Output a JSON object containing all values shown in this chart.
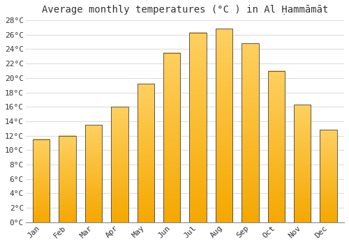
{
  "title": "Average monthly temperatures (°C ) in Al Ḥammāmāt",
  "months": [
    "Jan",
    "Feb",
    "Mar",
    "Apr",
    "May",
    "Jun",
    "Jul",
    "Aug",
    "Sep",
    "Oct",
    "Nov",
    "Dec"
  ],
  "values": [
    11.5,
    12.0,
    13.5,
    16.0,
    19.2,
    23.5,
    26.3,
    26.8,
    24.8,
    21.0,
    16.3,
    12.8
  ],
  "bar_color_top": "#FFD060",
  "bar_color_bottom": "#F5A800",
  "bar_edge_color": "#444444",
  "ylim": [
    0,
    28
  ],
  "ytick_step": 2,
  "background_color": "#ffffff",
  "grid_color": "#dddddd",
  "title_fontsize": 10,
  "tick_fontsize": 8,
  "xlabel_rotation": 45,
  "bar_width": 0.65
}
